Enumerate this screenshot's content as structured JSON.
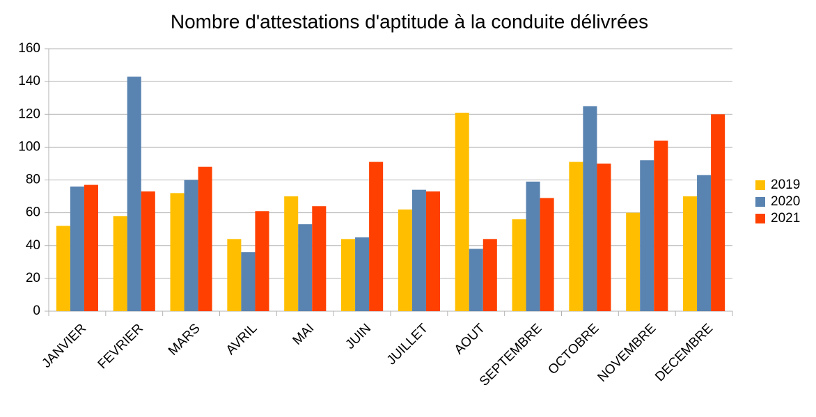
{
  "chart_data": {
    "type": "bar",
    "title": "Nombre d'attestations d'aptitude à la conduite  délivrées",
    "categories": [
      "JANVIER",
      "FEVRIER",
      "MARS",
      "AVRIL",
      "MAI",
      "JUIN",
      "JUILLET",
      "AOUT",
      "SEPTEMBRE",
      "OCTOBRE",
      "NOVEMBRE",
      "DECEMBRE"
    ],
    "series": [
      {
        "name": "2019",
        "color": "#ffbf00",
        "values": [
          52,
          58,
          72,
          44,
          70,
          44,
          62,
          121,
          56,
          91,
          60,
          70
        ]
      },
      {
        "name": "2020",
        "color": "#5983b0",
        "values": [
          76,
          143,
          80,
          36,
          53,
          45,
          74,
          38,
          79,
          125,
          92,
          83
        ]
      },
      {
        "name": "2021",
        "color": "#ff4000",
        "values": [
          77,
          73,
          88,
          61,
          64,
          91,
          73,
          44,
          69,
          90,
          104,
          120
        ]
      }
    ],
    "ylim": [
      0,
      160
    ],
    "yticks": [
      0,
      20,
      40,
      60,
      80,
      100,
      120,
      140,
      160
    ],
    "grid": true,
    "legend": "right"
  }
}
